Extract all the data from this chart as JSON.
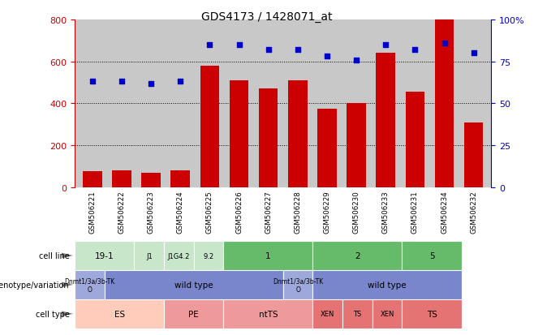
{
  "title": "GDS4173 / 1428071_at",
  "samples": [
    "GSM506221",
    "GSM506222",
    "GSM506223",
    "GSM506224",
    "GSM506225",
    "GSM506226",
    "GSM506227",
    "GSM506228",
    "GSM506229",
    "GSM506230",
    "GSM506233",
    "GSM506231",
    "GSM506234",
    "GSM506232"
  ],
  "counts": [
    75,
    80,
    70,
    80,
    580,
    510,
    470,
    510,
    375,
    400,
    640,
    455,
    800,
    310
  ],
  "percentiles": [
    63,
    63,
    62,
    63,
    85,
    85,
    82,
    82,
    78,
    76,
    85,
    82,
    86,
    80
  ],
  "bar_color": "#cc0000",
  "dot_color": "#0000cc",
  "left_yaxis_color": "#cc0000",
  "right_yaxis_color": "#0000cc",
  "left_ylim": [
    0,
    800
  ],
  "right_ylim": [
    0,
    100
  ],
  "left_yticks": [
    0,
    200,
    400,
    600,
    800
  ],
  "right_yticks": [
    0,
    25,
    50,
    75,
    100
  ],
  "right_yticklabels": [
    "0",
    "25",
    "50",
    "75",
    "100%"
  ],
  "grid_values": [
    200,
    400,
    600
  ],
  "cell_line_data": [
    {
      "label": "19-1",
      "start": 0,
      "end": 2,
      "color": "#c8e6c9"
    },
    {
      "label": "J1",
      "start": 2,
      "end": 3,
      "color": "#c8e6c9"
    },
    {
      "label": "J1G4.2",
      "start": 3,
      "end": 4,
      "color": "#c8e6c9"
    },
    {
      "label": "9.2",
      "start": 4,
      "end": 5,
      "color": "#c8e6c9"
    },
    {
      "label": "1",
      "start": 5,
      "end": 8,
      "color": "#66bb6a"
    },
    {
      "label": "2",
      "start": 8,
      "end": 11,
      "color": "#66bb6a"
    },
    {
      "label": "5",
      "start": 11,
      "end": 13,
      "color": "#66bb6a"
    }
  ],
  "genotype_data": [
    {
      "label": "Dnmt1/3a/3b-TK\nO",
      "start": 0,
      "end": 1,
      "color": "#9fa8da"
    },
    {
      "label": "wild type",
      "start": 1,
      "end": 7,
      "color": "#7986cb"
    },
    {
      "label": "Dnmt1/3a/3b-TK\nO",
      "start": 7,
      "end": 8,
      "color": "#9fa8da"
    },
    {
      "label": "wild type",
      "start": 8,
      "end": 13,
      "color": "#7986cb"
    }
  ],
  "celltype_data": [
    {
      "label": "ES",
      "start": 0,
      "end": 3,
      "color": "#ffccbc"
    },
    {
      "label": "PE",
      "start": 3,
      "end": 5,
      "color": "#ef9a9a"
    },
    {
      "label": "ntTS",
      "start": 5,
      "end": 8,
      "color": "#ef9a9a"
    },
    {
      "label": "XEN",
      "start": 8,
      "end": 9,
      "color": "#e57373"
    },
    {
      "label": "TS",
      "start": 9,
      "end": 10,
      "color": "#e57373"
    },
    {
      "label": "XEN",
      "start": 10,
      "end": 11,
      "color": "#e57373"
    },
    {
      "label": "TS",
      "start": 11,
      "end": 13,
      "color": "#e57373"
    }
  ],
  "row_labels": [
    "cell line",
    "genotype/variation",
    "cell type"
  ],
  "legend_count_color": "#cc0000",
  "legend_dot_color": "#0000cc",
  "sample_bg_color": "#c8c8c8"
}
